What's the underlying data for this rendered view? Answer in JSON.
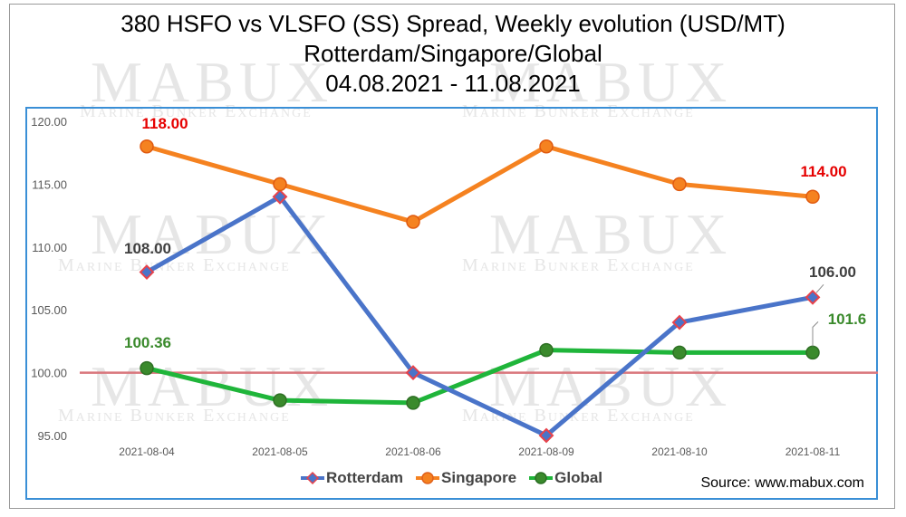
{
  "title_lines": [
    "380 HSFO vs VLSFO (SS) Spread, Weekly evolution (USD/MT)",
    "Rotterdam/Singapore/Global",
    "04.08.2021 - 11.08.2021"
  ],
  "source": "Source: www.mabux.com",
  "watermark": {
    "big": "MABUX",
    "small": "Marine Bunker Exchange"
  },
  "chart_data": {
    "type": "line",
    "title": "380 HSFO vs VLSFO (SS) Spread, Weekly evolution (USD/MT)",
    "subtitle": "Rotterdam/Singapore/Global 04.08.2021 - 11.08.2021",
    "categories": [
      "2021-08-04",
      "2021-08-05",
      "2021-08-06",
      "2021-08-09",
      "2021-08-10",
      "2021-08-11"
    ],
    "ylim": [
      95,
      120
    ],
    "yticks": [
      95,
      100,
      105,
      110,
      115,
      120
    ],
    "ytick_labels": [
      "95.00",
      "100.00",
      "105.00",
      "110.00",
      "115.00",
      "120.00"
    ],
    "reference_line": {
      "y": 100,
      "color": "#d9767c"
    },
    "grid": false,
    "legend": "bottom",
    "series": [
      {
        "name": "Rotterdam",
        "color": "#4a74c9",
        "marker": "diamond",
        "marker_color": "#e8424a",
        "values": [
          108,
          114,
          100,
          95,
          104,
          106
        ],
        "data_labels": [
          {
            "index": 0,
            "text": "108.00",
            "color": "#404040"
          },
          {
            "index": 5,
            "text": "106.00",
            "color": "#404040"
          }
        ]
      },
      {
        "name": "Singapore",
        "color": "#f58220",
        "marker": "circle",
        "marker_color": "#f58220",
        "values": [
          118,
          115,
          112,
          118,
          115,
          114
        ],
        "data_labels": [
          {
            "index": 0,
            "text": "118.00",
            "color": "#e60000"
          },
          {
            "index": 5,
            "text": "114.00",
            "color": "#e60000"
          }
        ]
      },
      {
        "name": "Global",
        "color": "#1fb53a",
        "marker": "circle",
        "marker_color": "#3a8a2c",
        "values": [
          100.36,
          97.8,
          97.6,
          101.8,
          101.6,
          101.6
        ],
        "data_labels": [
          {
            "index": 0,
            "text": "100.36",
            "color": "#3a8a2c"
          },
          {
            "index": 5,
            "text": "101.6",
            "color": "#3a8a2c"
          }
        ]
      }
    ]
  }
}
